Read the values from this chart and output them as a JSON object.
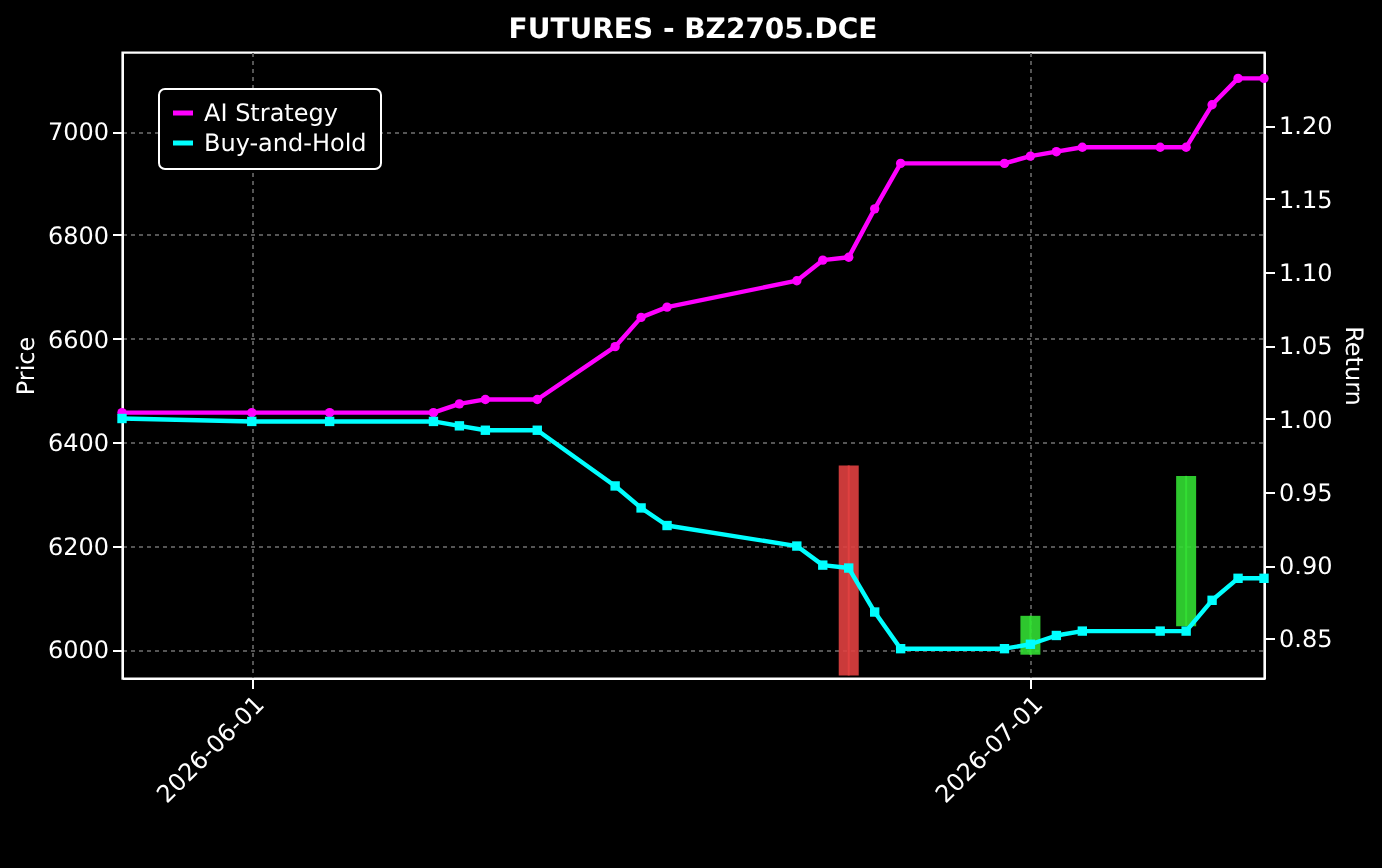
{
  "chart_data": {
    "type": "line",
    "title": "FUTURES - BZ2705.DCE",
    "ylabel": "Price",
    "y2label": "Return",
    "x": [
      "2026-05-27",
      "2026-06-01",
      "2026-06-04",
      "2026-06-08",
      "2026-06-09",
      "2026-06-10",
      "2026-06-12",
      "2026-06-15",
      "2026-06-16",
      "2026-06-17",
      "2026-06-22",
      "2026-06-23",
      "2026-06-24",
      "2026-06-25",
      "2026-06-26",
      "2026-06-30",
      "2026-07-01",
      "2026-07-02",
      "2026-07-03",
      "2026-07-06",
      "2026-07-07",
      "2026-07-08",
      "2026-07-09",
      "2026-07-10"
    ],
    "series": [
      {
        "name": "AI Strategy",
        "color": "#ff00ff",
        "axis": "y2",
        "marker": "circle",
        "values": [
          1.004,
          1.004,
          1.004,
          1.004,
          1.01,
          1.013,
          1.013,
          1.049,
          1.069,
          1.076,
          1.094,
          1.108,
          1.11,
          1.143,
          1.174,
          1.174,
          1.179,
          1.182,
          1.185,
          1.185,
          1.185,
          1.214,
          1.232,
          1.232
        ]
      },
      {
        "name": "Buy-and-Hold",
        "color": "#00ffff",
        "axis": "y2",
        "marker": "square",
        "values": [
          1.0,
          0.998,
          0.998,
          0.998,
          0.995,
          0.992,
          0.992,
          0.954,
          0.939,
          0.927,
          0.913,
          0.9,
          0.898,
          0.868,
          0.843,
          0.843,
          0.846,
          0.852,
          0.855,
          0.855,
          0.855,
          0.876,
          0.891,
          0.891
        ]
      },
      {
        "type": "candlestick",
        "x": [
          "2026-06-24",
          "2026-07-01",
          "2026-07-07"
        ],
        "ohlc": [
          [
            6355,
            6355,
            5950,
            5950
          ],
          [
            5990,
            6065,
            5990,
            6065
          ],
          [
            6045,
            6335,
            6045,
            6335
          ]
        ],
        "colors": [
          "#e04040",
          "#33dd33",
          "#33dd33"
        ]
      }
    ],
    "xlim": [
      "2026-05-27",
      "2026-07-10"
    ],
    "xticks": [
      "2026-06-01",
      "2026-07-01"
    ],
    "ylim": [
      5945,
      7153
    ],
    "yticks": [
      6000,
      6200,
      6400,
      6600,
      6800,
      7000
    ],
    "y2lim": [
      0.823,
      1.25
    ],
    "y2ticks": [
      {
        "value": 0.85,
        "label": "0.85"
      },
      {
        "value": 0.9,
        "label": "0.90"
      },
      {
        "value": 0.95,
        "label": "0.95"
      },
      {
        "value": 1.0,
        "label": "1.00"
      },
      {
        "value": 1.05,
        "label": "1.05"
      },
      {
        "value": 1.1,
        "label": "1.10"
      },
      {
        "value": 1.15,
        "label": "1.15"
      },
      {
        "value": 1.2,
        "label": "1.20"
      }
    ],
    "grid": true,
    "legend": "top left",
    "line_style": "solid"
  }
}
